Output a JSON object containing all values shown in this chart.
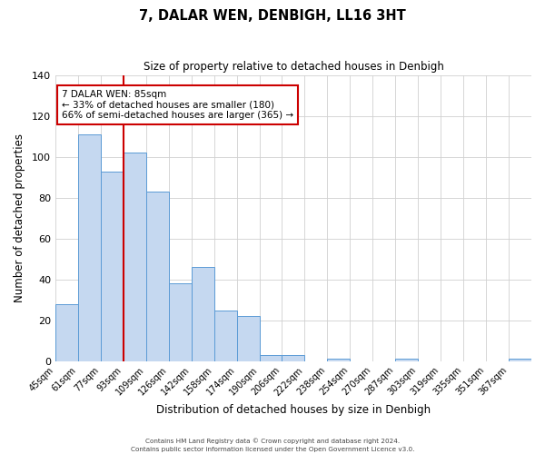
{
  "title": "7, DALAR WEN, DENBIGH, LL16 3HT",
  "subtitle": "Size of property relative to detached houses in Denbigh",
  "xlabel": "Distribution of detached houses by size in Denbigh",
  "ylabel": "Number of detached properties",
  "bar_labels": [
    "45sqm",
    "61sqm",
    "77sqm",
    "93sqm",
    "109sqm",
    "126sqm",
    "142sqm",
    "158sqm",
    "174sqm",
    "190sqm",
    "206sqm",
    "222sqm",
    "238sqm",
    "254sqm",
    "270sqm",
    "287sqm",
    "303sqm",
    "319sqm",
    "335sqm",
    "351sqm",
    "367sqm"
  ],
  "bar_values": [
    28,
    111,
    93,
    102,
    83,
    38,
    46,
    25,
    22,
    3,
    3,
    0,
    1,
    0,
    0,
    1,
    0,
    0,
    0,
    0,
    1
  ],
  "bar_color": "#c5d8f0",
  "bar_edge_color": "#5b9bd5",
  "ylim": [
    0,
    140
  ],
  "yticks": [
    0,
    20,
    40,
    60,
    80,
    100,
    120,
    140
  ],
  "property_line_x": 3.0,
  "property_line_color": "#cc0000",
  "annotation_title": "7 DALAR WEN: 85sqm",
  "annotation_line1": "← 33% of detached houses are smaller (180)",
  "annotation_line2": "66% of semi-detached houses are larger (365) →",
  "annotation_box_color": "#ffffff",
  "annotation_box_edge": "#cc0000",
  "footer1": "Contains HM Land Registry data © Crown copyright and database right 2024.",
  "footer2": "Contains public sector information licensed under the Open Government Licence v3.0.",
  "background_color": "#ffffff",
  "grid_color": "#d0d0d0"
}
